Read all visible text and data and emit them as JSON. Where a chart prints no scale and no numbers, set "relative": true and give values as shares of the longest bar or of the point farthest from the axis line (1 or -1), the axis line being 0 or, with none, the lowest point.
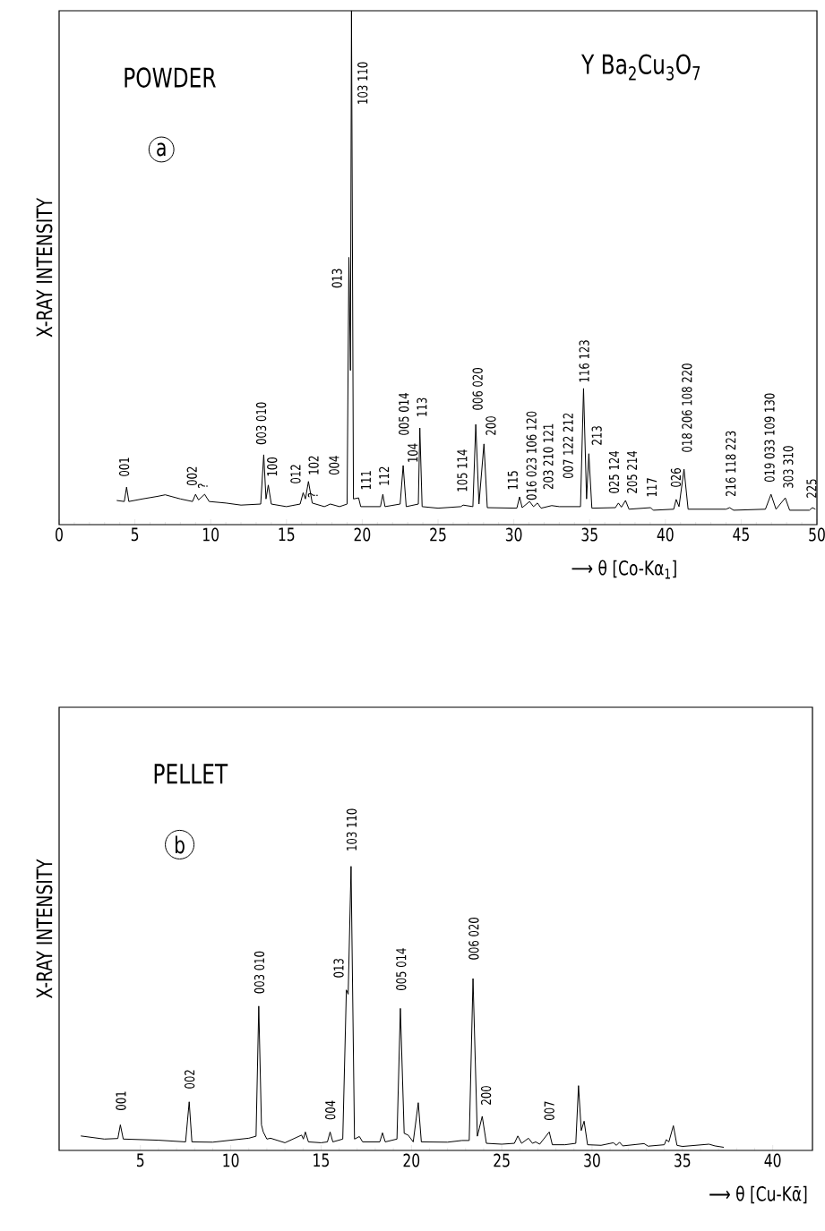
{
  "chart_data": [
    {
      "type": "line",
      "title": "POWDER",
      "subtitle": "a",
      "xlabel": "⟶ θ [Co-Kα$_{1}$]",
      "ylabel": "X-RAY INTENSITY",
      "relative": true,
      "color": "#000000",
      "xlim": [
        0,
        50
      ],
      "xticks": [
        0,
        5,
        10,
        15,
        20,
        25,
        30,
        35,
        40,
        45,
        50
      ],
      "x": [
        3.8,
        4.3,
        4.45,
        4.6,
        5.5,
        6.5,
        7,
        8,
        8.8,
        9.0,
        9.2,
        9.6,
        9.9,
        11,
        12,
        13.3,
        13.5,
        13.65,
        13.8,
        14,
        15,
        15.9,
        16.1,
        16.25,
        16.45,
        16.7,
        17.5,
        17.9,
        18.5,
        19.0,
        19.12,
        19.22,
        19.29,
        19.42,
        19.76,
        19.9,
        21.2,
        21.36,
        21.5,
        22.5,
        22.7,
        22.9,
        23.7,
        23.8,
        23.95,
        25,
        26.5,
        26.66,
        27.3,
        27.49,
        27.7,
        28.03,
        28.25,
        30.2,
        30.38,
        30.55,
        31.04,
        31.3,
        31.56,
        31.8,
        32.5,
        33,
        34.4,
        34.6,
        34.8,
        34.95,
        35.15,
        36.7,
        36.9,
        37.1,
        37.37,
        37.6,
        39.03,
        39.2,
        40.55,
        40.71,
        40.9,
        41.23,
        41.5,
        44,
        44.24,
        44.5,
        46.6,
        46.97,
        47.3,
        47.91,
        48.2,
        49.5,
        49.7,
        49.9
      ],
      "values": [
        0.047,
        0.045,
        0.073,
        0.045,
        0.05,
        0.055,
        0.058,
        0.05,
        0.045,
        0.059,
        0.048,
        0.059,
        0.045,
        0.042,
        0.038,
        0.04,
        0.136,
        0.05,
        0.077,
        0.04,
        0.035,
        0.04,
        0.062,
        0.05,
        0.084,
        0.042,
        0.035,
        0.04,
        0.035,
        0.04,
        0.52,
        0.3,
        1,
        0.05,
        0.052,
        0.035,
        0.035,
        0.059,
        0.035,
        0.04,
        0.115,
        0.035,
        0.04,
        0.188,
        0.035,
        0.032,
        0.035,
        0.038,
        0.035,
        0.195,
        0.04,
        0.157,
        0.033,
        0.032,
        0.054,
        0.033,
        0.045,
        0.035,
        0.042,
        0.032,
        0.037,
        0.035,
        0.035,
        0.265,
        0.05,
        0.138,
        0.032,
        0.033,
        0.042,
        0.034,
        0.047,
        0.03,
        0.033,
        0.028,
        0.03,
        0.049,
        0.035,
        0.108,
        0.03,
        0.03,
        0.033,
        0.028,
        0.03,
        0.059,
        0.03,
        0.052,
        0.028,
        0.028,
        0.033,
        0.03
      ],
      "annotations": [
        "Y Ba$_{2}$Cu$_{3}$O$_{7}$",
        {
          "text": "001",
          "x": 4.45,
          "y": 0.073
        },
        {
          "text": "002",
          "x": 9.0,
          "y": 0.059
        },
        {
          "text": "?",
          "x": 9.6,
          "y": 0.059
        },
        {
          "text": "003 010",
          "x": 13.5,
          "y": 0.136
        },
        {
          "text": "100",
          "x": 13.8,
          "y": 0.077
        },
        {
          "text": "012",
          "x": 16.1,
          "y": 0.062
        },
        {
          "text": "102",
          "x": 16.45,
          "y": 0.084
        },
        {
          "text": "?",
          "x": 16.7,
          "y": 0.042
        },
        {
          "text": "004",
          "x": 17.9,
          "y": 0.04
        },
        {
          "text": "013",
          "x": 19.12,
          "y": 0.52
        },
        {
          "text": "103 110",
          "x": 19.27,
          "y": 0.8
        },
        {
          "text": "111",
          "x": 19.76,
          "y": 0.052
        },
        {
          "text": "112",
          "x": 21.36,
          "y": 0.059
        },
        {
          "text": "005 014",
          "x": 22.7,
          "y": 0.115
        },
        {
          "text": "104",
          "x": 22.7,
          "y": 0.115
        },
        {
          "text": "113",
          "x": 23.8,
          "y": 0.188
        },
        {
          "text": "105 114",
          "x": 26.66,
          "y": 0.038
        },
        {
          "text": "006 020",
          "x": 27.49,
          "y": 0.195
        },
        {
          "text": "200",
          "x": 28.03,
          "y": 0.157
        },
        {
          "text": "115",
          "x": 30.38,
          "y": 0.054
        },
        {
          "text": "016 023 106 120",
          "x": 31.04,
          "y": 0.045
        },
        {
          "text": "203 210 121",
          "x": 31.56,
          "y": 0.042
        },
        {
          "text": "007 122 212",
          "x": 32.5,
          "y": 0.037
        },
        {
          "text": "116 123",
          "x": 34.6,
          "y": 0.265
        },
        {
          "text": "213",
          "x": 34.95,
          "y": 0.138
        },
        {
          "text": "025 124",
          "x": 36.9,
          "y": 0.042
        },
        {
          "text": "205 214",
          "x": 37.37,
          "y": 0.047
        },
        {
          "text": "117",
          "x": 39.03,
          "y": 0.033
        },
        {
          "text": "026",
          "x": 40.71,
          "y": 0.049
        },
        {
          "text": "018 206 108 220",
          "x": 41.23,
          "y": 0.108
        },
        {
          "text": "216 118 223",
          "x": 44.24,
          "y": 0.033
        },
        {
          "text": "019 033 109 130",
          "x": 46.97,
          "y": 0.059
        },
        {
          "text": "303 310",
          "x": 47.91,
          "y": 0.052
        },
        {
          "text": "225",
          "x": 49.7,
          "y": 0.033
        }
      ]
    },
    {
      "type": "line",
      "title": "PELLET",
      "subtitle": "b",
      "xlabel": "⟶ θ [Cu-Kᾱ]",
      "ylabel": "X-RAY INTENSITY",
      "relative": true,
      "color": "#000000",
      "xlim": [
        0.5,
        42.2
      ],
      "xticks": [
        5,
        10,
        15,
        20,
        25,
        30,
        35,
        40
      ],
      "x": [
        1.7,
        3,
        3.75,
        3.89,
        4.05,
        6,
        7.5,
        7.7,
        7.85,
        9,
        11,
        11.4,
        11.55,
        11.7,
        11.8,
        12,
        12.2,
        13,
        13.92,
        14.02,
        14.13,
        14.3,
        15,
        15.35,
        15.5,
        15.65,
        16.2,
        16.4,
        16.5,
        16.66,
        16.85,
        17.12,
        17.3,
        18.25,
        18.4,
        18.55,
        19.2,
        19.39,
        19.6,
        19.82,
        20.1,
        20.38,
        20.55,
        22,
        22.8,
        23.2,
        23.41,
        23.65,
        23.92,
        24.15,
        25,
        25.7,
        25.89,
        26.1,
        26.48,
        26.7,
        26.88,
        27.1,
        27.63,
        27.8,
        28.5,
        29.1,
        29.25,
        29.4,
        29.56,
        29.75,
        30.5,
        31.18,
        31.35,
        31.52,
        31.7,
        32.88,
        33.1,
        34.0,
        34.11,
        34.25,
        34.5,
        34.7,
        35,
        36.47,
        36.8,
        37.29
      ],
      "values": [
        0.051,
        0.04,
        0.042,
        0.09,
        0.04,
        0.036,
        0.03,
        0.171,
        0.03,
        0.029,
        0.043,
        0.05,
        0.508,
        0.09,
        0.065,
        0.04,
        0.043,
        0.027,
        0.054,
        0.04,
        0.065,
        0.03,
        0.027,
        0.03,
        0.065,
        0.03,
        0.04,
        0.565,
        0.55,
        1,
        0.04,
        0.049,
        0.03,
        0.03,
        0.062,
        0.03,
        0.04,
        0.5,
        0.06,
        0.054,
        0.03,
        0.168,
        0.03,
        0.029,
        0.035,
        0.035,
        0.605,
        0.05,
        0.12,
        0.025,
        0.022,
        0.025,
        0.051,
        0.025,
        0.043,
        0.025,
        0.03,
        0.022,
        0.065,
        0.02,
        0.02,
        0.025,
        0.228,
        0.07,
        0.103,
        0.02,
        0.018,
        0.027,
        0.018,
        0.029,
        0.016,
        0.024,
        0.015,
        0.02,
        0.038,
        0.03,
        0.087,
        0.018,
        0.014,
        0.022,
        0.016,
        0.011
      ],
      "annotations": [
        {
          "text": "001",
          "x": 3.89,
          "y": 0.09
        },
        {
          "text": "002",
          "x": 7.7,
          "y": 0.171
        },
        {
          "text": "003 010",
          "x": 11.55,
          "y": 0.508
        },
        {
          "text": "004",
          "x": 15.5,
          "y": 0.065
        },
        {
          "text": "013",
          "x": 16.4,
          "y": 0.565
        },
        {
          "text": "103 110",
          "x": 16.66,
          "y": 1
        },
        {
          "text": "005 014",
          "x": 19.39,
          "y": 0.5
        },
        {
          "text": "006 020",
          "x": 23.41,
          "y": 0.605
        },
        {
          "text": "200",
          "x": 23.92,
          "y": 0.12
        },
        {
          "text": "007",
          "x": 27.63,
          "y": 0.065
        }
      ]
    }
  ]
}
